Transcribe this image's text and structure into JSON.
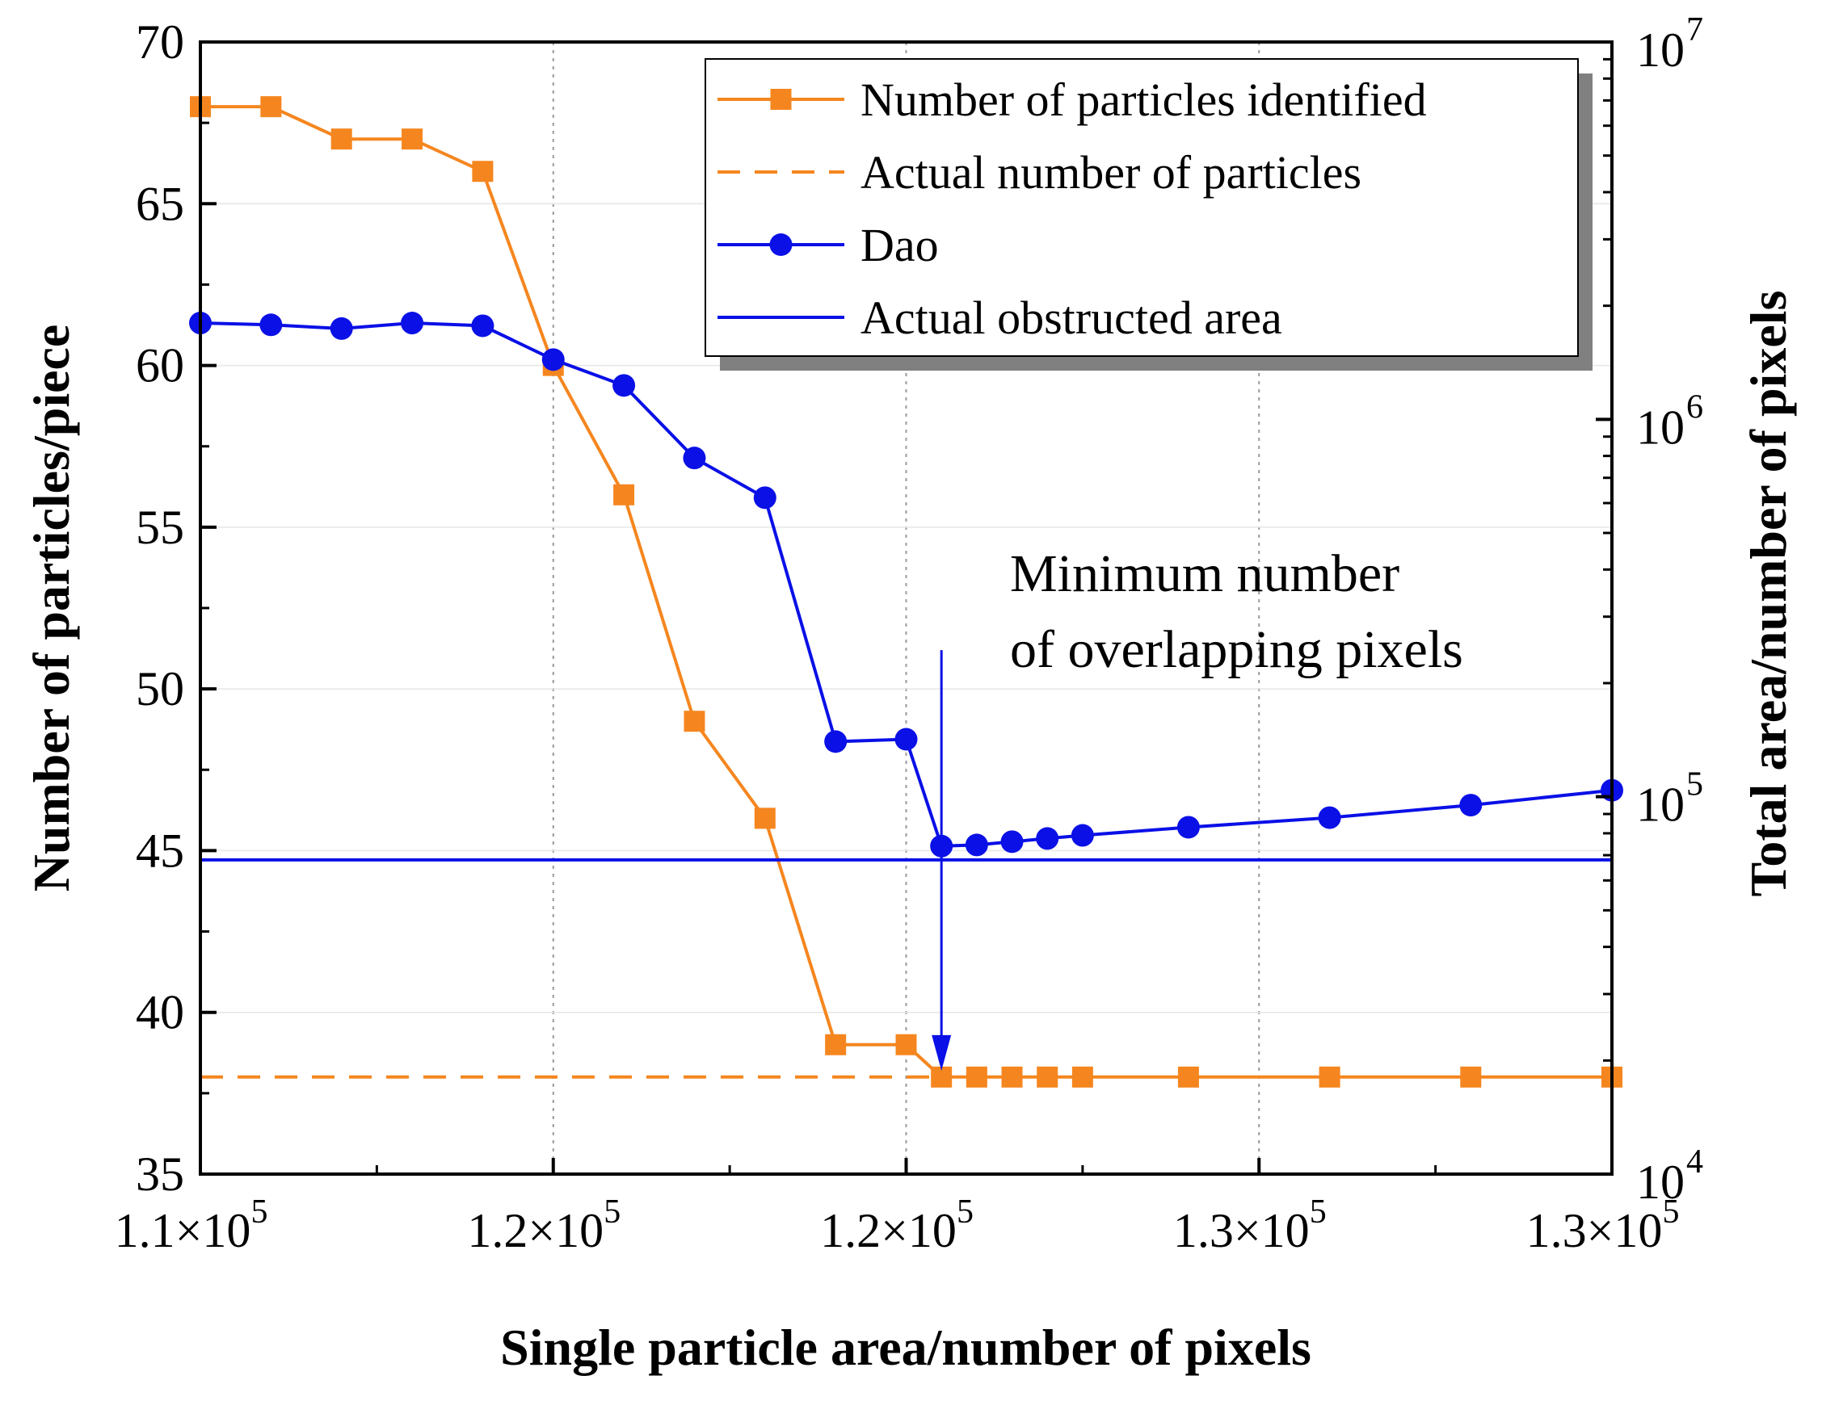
{
  "chart_data": {
    "type": "line",
    "title": "",
    "xlabel": "Single particle area/number of pixels",
    "ylabel_left": "Number of particles/piece",
    "ylabel_right": "Total area/number of pixels",
    "xlim": [
      110000,
      130000
    ],
    "ylim_left": [
      35,
      70
    ],
    "ylim_right": [
      10000,
      10000000
    ],
    "right_axis_scale": "log",
    "x_ticks": [
      {
        "value": 110000,
        "label": "1.1×10",
        "exp": "5"
      },
      {
        "value": 115000,
        "label": "1.2×10",
        "exp": "5"
      },
      {
        "value": 120000,
        "label": "1.2×10",
        "exp": "5"
      },
      {
        "value": 125000,
        "label": "1.3×10",
        "exp": "5"
      },
      {
        "value": 130000,
        "label": "1.3×10",
        "exp": "5"
      }
    ],
    "y_left_ticks": [
      "35",
      "40",
      "45",
      "50",
      "55",
      "60",
      "65",
      "70"
    ],
    "y_right_ticks": [
      {
        "value": 10000,
        "base": "10",
        "exp": "4"
      },
      {
        "value": 100000,
        "base": "10",
        "exp": "5"
      },
      {
        "value": 1000000,
        "base": "10",
        "exp": "6"
      },
      {
        "value": 10000000,
        "base": "10",
        "exp": "7"
      }
    ],
    "grid": "x-major-dotted",
    "legend_position": "top-right",
    "series": [
      {
        "name": "Number of particles identified",
        "axis": "left",
        "color": "#f5861f",
        "marker": "square",
        "line": "solid",
        "x": [
          110000,
          111000,
          112000,
          113000,
          114000,
          115000,
          116000,
          117000,
          118000,
          119000,
          120000,
          120500,
          121000,
          121500,
          122000,
          122500,
          124000,
          126000,
          128000,
          130000
        ],
        "y": [
          68,
          68,
          67,
          67,
          66,
          60,
          56,
          49,
          46,
          39,
          39,
          38,
          38,
          38,
          38,
          38,
          38,
          38,
          38,
          38
        ]
      },
      {
        "name": "Actual number of particles",
        "axis": "left",
        "color": "#f5861f",
        "marker": "none",
        "line": "dashed",
        "x": [
          110000,
          120500
        ],
        "y": [
          38,
          38
        ]
      },
      {
        "name": "Dao",
        "axis": "right",
        "color": "#0a10e6",
        "marker": "circle",
        "line": "solid",
        "x": [
          110000,
          111000,
          112000,
          113000,
          114000,
          115000,
          116000,
          117000,
          118000,
          119000,
          120000,
          120500,
          121000,
          121500,
          122000,
          122500,
          124000,
          126000,
          128000,
          130000
        ],
        "y": [
          1800000,
          1780000,
          1740000,
          1800000,
          1770000,
          1440000,
          1230000,
          790000,
          620000,
          140000,
          142000,
          74000,
          74500,
          76000,
          77500,
          79000,
          83000,
          88000,
          95000,
          104000
        ]
      },
      {
        "name": "Actual obstructed area",
        "axis": "right",
        "color": "#0a10e6",
        "marker": "none",
        "line": "solid",
        "x": [
          110000,
          130000
        ],
        "y": [
          68000,
          68000
        ]
      }
    ],
    "annotation": {
      "lines": [
        "Minimum number",
        "of overlapping pixels"
      ],
      "arrow_x": 120500,
      "arrow_y_from": 51.2,
      "arrow_y_to": 38.2,
      "color": "#0a10e6"
    }
  }
}
